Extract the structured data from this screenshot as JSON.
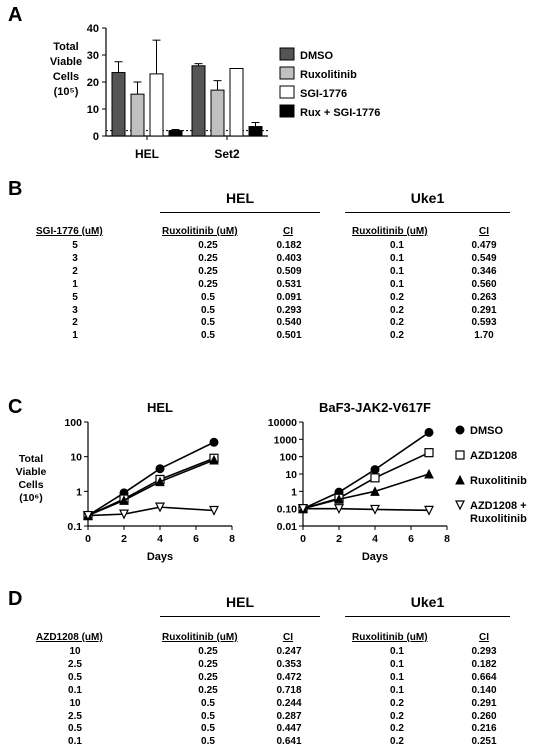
{
  "panels": {
    "a": "A",
    "b": "B",
    "c": "C",
    "d": "D"
  },
  "chart_data": [
    {
      "type": "bar",
      "panel": "A",
      "ylabel": "Total Viable Cells (10⁵)",
      "ylabel_lines": [
        "Total",
        "Viable",
        "Cells",
        "(10⁵)"
      ],
      "ylim": [
        0,
        40
      ],
      "yticks": [
        "0",
        "10",
        "20",
        "30",
        "40"
      ],
      "categories": [
        "HEL",
        "Set2"
      ],
      "reference_line": 2,
      "series": [
        {
          "name": "DMSO",
          "color": "#555555",
          "values": [
            23.5,
            26
          ],
          "errors": [
            4,
            0.8
          ]
        },
        {
          "name": "Ruxolitinib",
          "color": "#c0c0c0",
          "values": [
            15.5,
            17
          ],
          "errors": [
            4.5,
            3.5
          ]
        },
        {
          "name": "SGI-1776",
          "color": "#ffffff",
          "values": [
            23,
            25
          ],
          "errors": [
            12.5,
            0
          ]
        },
        {
          "name": "Rux + SGI-1776",
          "color": "#000000",
          "values": [
            2,
            3.5
          ],
          "errors": [
            0.4,
            1.5
          ]
        }
      ],
      "legend_position": "right"
    },
    {
      "type": "line",
      "panel": "C",
      "title": "HEL",
      "xlabel": "Days",
      "ylabel": "Total Viable Cells (10⁶)",
      "ylabel_lines": [
        "Total",
        "Viable",
        "Cells",
        "(10⁶)"
      ],
      "yscale": "log",
      "ylim": [
        0.1,
        100
      ],
      "yticks": [
        "0.1",
        "1",
        "10",
        "100"
      ],
      "xlim": [
        0,
        8
      ],
      "xticks": [
        "0",
        "2",
        "4",
        "6",
        "8"
      ],
      "x": [
        0,
        2,
        4,
        7
      ],
      "series": [
        {
          "name": "DMSO",
          "marker": "circle",
          "values": [
            0.2,
            0.9,
            4.5,
            26
          ]
        },
        {
          "name": "AZD1208",
          "marker": "square",
          "values": [
            0.2,
            0.6,
            2.2,
            9
          ]
        },
        {
          "name": "Ruxolitinib",
          "marker": "triangle",
          "values": [
            0.2,
            0.55,
            1.9,
            8
          ]
        },
        {
          "name": "AZD1208 + Ruxolitinib",
          "marker": "triangle-down",
          "values": [
            0.2,
            0.22,
            0.35,
            0.28
          ]
        }
      ]
    },
    {
      "type": "line",
      "panel": "C",
      "title": "BaF3-JAK2-V617F",
      "xlabel": "Days",
      "yscale": "log",
      "ylim": [
        0.01,
        10000
      ],
      "yticks": [
        "0.01",
        "0.10",
        "1",
        "10",
        "100",
        "1000",
        "10000"
      ],
      "xlim": [
        0,
        8
      ],
      "xticks": [
        "0",
        "2",
        "4",
        "6",
        "8"
      ],
      "x": [
        0,
        2,
        4,
        7
      ],
      "series": [
        {
          "name": "DMSO",
          "marker": "circle",
          "values": [
            0.1,
            0.9,
            18,
            2500
          ]
        },
        {
          "name": "AZD1208",
          "marker": "square",
          "values": [
            0.1,
            0.4,
            6,
            170
          ]
        },
        {
          "name": "Ruxolitinib",
          "marker": "triangle",
          "values": [
            0.1,
            0.35,
            1,
            10
          ]
        },
        {
          "name": "AZD1208 + Ruxolitinib",
          "marker": "triangle-down",
          "values": [
            0.1,
            0.1,
            0.09,
            0.08
          ]
        }
      ],
      "legend_position": "right"
    }
  ],
  "table_b": {
    "drug_header": "SGI-1776 (uM)",
    "group1": "HEL",
    "group2": "Uke1",
    "rux_header": "Ruxolitinib (uM)",
    "ci_header": "CI",
    "rows": [
      [
        "5",
        "0.25",
        "0.182",
        "0.1",
        "0.479"
      ],
      [
        "3",
        "0.25",
        "0.403",
        "0.1",
        "0.549"
      ],
      [
        "2",
        "0.25",
        "0.509",
        "0.1",
        "0.346"
      ],
      [
        "1",
        "0.25",
        "0.531",
        "0.1",
        "0.560"
      ],
      [
        "5",
        "0.5",
        "0.091",
        "0.2",
        "0.263"
      ],
      [
        "3",
        "0.5",
        "0.293",
        "0.2",
        "0.291"
      ],
      [
        "2",
        "0.5",
        "0.540",
        "0.2",
        "0.593"
      ],
      [
        "1",
        "0.5",
        "0.501",
        "0.2",
        "1.70"
      ]
    ]
  },
  "table_d": {
    "drug_header": "AZD1208 (uM)",
    "group1": "HEL",
    "group2": "Uke1",
    "rux_header": "Ruxolitinib (uM)",
    "ci_header": "CI",
    "rows": [
      [
        "10",
        "0.25",
        "0.247",
        "0.1",
        "0.293"
      ],
      [
        "2.5",
        "0.25",
        "0.353",
        "0.1",
        "0.182"
      ],
      [
        "0.5",
        "0.25",
        "0.472",
        "0.1",
        "0.664"
      ],
      [
        "0.1",
        "0.25",
        "0.718",
        "0.1",
        "0.140"
      ],
      [
        "10",
        "0.5",
        "0.244",
        "0.2",
        "0.291"
      ],
      [
        "2.5",
        "0.5",
        "0.287",
        "0.2",
        "0.260"
      ],
      [
        "0.5",
        "0.5",
        "0.447",
        "0.2",
        "0.216"
      ],
      [
        "0.1",
        "0.5",
        "0.641",
        "0.2",
        "0.251"
      ]
    ]
  }
}
